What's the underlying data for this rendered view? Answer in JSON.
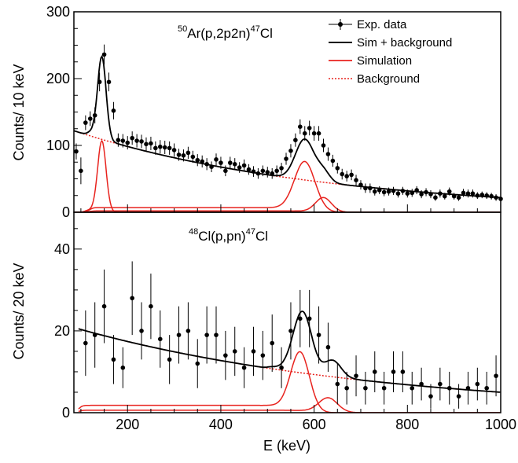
{
  "colors": {
    "data": "#000000",
    "total": "#000000",
    "sim": "#e8231e",
    "background": "#e8231e",
    "axis": "#000000"
  },
  "xlabel": "E (keV)",
  "xlim": [
    85,
    1000
  ],
  "xticks": [
    200,
    400,
    600,
    800,
    1000
  ],
  "legend": {
    "placement": "top-right",
    "entries": [
      {
        "label": "Exp. data",
        "style": "points"
      },
      {
        "label": "Sim + background",
        "style": "total"
      },
      {
        "label": "Simulation",
        "style": "sim"
      },
      {
        "label": "Background",
        "style": "background"
      }
    ]
  },
  "chart_data": [
    {
      "type": "scatter",
      "panel": "top",
      "title_parts": {
        "mass_a": "50",
        "reaction": "Ar(p,2p2n)",
        "mass_b": "47",
        "product": "Cl"
      },
      "ylabel": "Counts/ 10 keV",
      "ylim": [
        0,
        300
      ],
      "yticks": [
        0,
        100,
        200,
        300
      ],
      "x_range": [
        85,
        1000
      ],
      "series": [
        {
          "name": "Exp. data",
          "kind": "points",
          "points": [
            [
              90,
              91,
              12
            ],
            [
              100,
              62,
              20
            ],
            [
              110,
              134,
              11
            ],
            [
              120,
              140,
              11
            ],
            [
              130,
              145,
              12
            ],
            [
              140,
              195,
              14
            ],
            [
              150,
              236,
              15
            ],
            [
              160,
              195,
              14
            ],
            [
              170,
              152,
              13
            ],
            [
              180,
              108,
              10
            ],
            [
              190,
              107,
              10
            ],
            [
              200,
              104,
              10
            ],
            [
              210,
              111,
              10
            ],
            [
              220,
              107,
              10
            ],
            [
              230,
              106,
              10
            ],
            [
              240,
              102,
              10
            ],
            [
              250,
              103,
              10
            ],
            [
              260,
              96,
              10
            ],
            [
              270,
              98,
              10
            ],
            [
              280,
              97,
              10
            ],
            [
              290,
              96,
              10
            ],
            [
              300,
              93,
              10
            ],
            [
              310,
              86,
              9
            ],
            [
              320,
              85,
              9
            ],
            [
              330,
              89,
              9
            ],
            [
              340,
              83,
              9
            ],
            [
              350,
              78,
              9
            ],
            [
              360,
              76,
              9
            ],
            [
              370,
              72,
              9
            ],
            [
              380,
              68,
              8
            ],
            [
              390,
              79,
              9
            ],
            [
              400,
              74,
              9
            ],
            [
              410,
              62,
              8
            ],
            [
              420,
              74,
              9
            ],
            [
              430,
              72,
              9
            ],
            [
              440,
              67,
              8
            ],
            [
              450,
              70,
              9
            ],
            [
              460,
              64,
              8
            ],
            [
              470,
              61,
              8
            ],
            [
              480,
              58,
              8
            ],
            [
              490,
              62,
              8
            ],
            [
              500,
              60,
              8
            ],
            [
              510,
              58,
              8
            ],
            [
              520,
              62,
              8
            ],
            [
              530,
              66,
              8
            ],
            [
              540,
              80,
              9
            ],
            [
              550,
              92,
              10
            ],
            [
              560,
              108,
              10
            ],
            [
              570,
              128,
              11
            ],
            [
              580,
              118,
              11
            ],
            [
              590,
              126,
              11
            ],
            [
              600,
              118,
              11
            ],
            [
              610,
              118,
              11
            ],
            [
              620,
              100,
              10
            ],
            [
              630,
              87,
              10
            ],
            [
              640,
              77,
              9
            ],
            [
              650,
              66,
              8
            ],
            [
              660,
              57,
              8
            ],
            [
              670,
              54,
              8
            ],
            [
              680,
              56,
              8
            ],
            [
              690,
              48,
              8
            ],
            [
              700,
              41,
              7
            ],
            [
              710,
              36,
              7
            ],
            [
              720,
              36,
              7
            ],
            [
              730,
              31,
              6
            ],
            [
              740,
              33,
              6
            ],
            [
              750,
              30,
              6
            ],
            [
              760,
              31,
              6
            ],
            [
              770,
              32,
              6
            ],
            [
              780,
              28,
              6
            ],
            [
              790,
              32,
              6
            ],
            [
              800,
              28,
              6
            ],
            [
              810,
              29,
              6
            ],
            [
              820,
              33,
              6
            ],
            [
              830,
              27,
              6
            ],
            [
              840,
              30,
              6
            ],
            [
              850,
              27,
              6
            ],
            [
              860,
              22,
              5
            ],
            [
              870,
              28,
              6
            ],
            [
              880,
              24,
              5
            ],
            [
              890,
              31,
              6
            ],
            [
              900,
              24,
              5
            ],
            [
              910,
              22,
              5
            ],
            [
              920,
              29,
              6
            ],
            [
              930,
              28,
              6
            ],
            [
              940,
              28,
              6
            ],
            [
              950,
              25,
              5
            ],
            [
              960,
              26,
              5
            ],
            [
              970,
              25,
              5
            ],
            [
              980,
              24,
              5
            ],
            [
              990,
              22,
              5
            ],
            [
              1000,
              20,
              5
            ]
          ]
        },
        {
          "name": "Sim + background",
          "kind": "total",
          "peaks": [
            [
              145,
              120,
              9
            ],
            [
              580,
              61,
              20
            ],
            [
              620,
              15,
              14
            ]
          ],
          "shoulder": [
            115,
            145,
            8,
            10
          ]
        },
        {
          "name": "Simulation",
          "kind": "sim",
          "components": [
            {
              "peaks": [
                [
                  145,
                  105,
                  9
                ]
              ],
              "shoulder": [
                110,
                145,
                4,
                8
              ]
            },
            {
              "peaks": [
                [
                  580,
                  73,
                  22
                ]
              ],
              "shoulder": [
                118,
                575,
                7,
                18
              ]
            },
            {
              "peaks": [
                [
                  620,
                  21,
                  17
                ]
              ],
              "shoulder": [
                118,
                620,
                2,
                20
              ]
            }
          ]
        },
        {
          "name": "Background",
          "kind": "background",
          "curve": [
            [
              85,
              122
            ],
            [
              1000,
              22
            ]
          ]
        }
      ]
    },
    {
      "type": "scatter",
      "panel": "bottom",
      "title_parts": {
        "mass_a": "48",
        "reaction": "Cl(p,pn)",
        "mass_b": "47",
        "product": "Cl"
      },
      "ylabel": "Counts/ 20 keV",
      "ylim": [
        0,
        49
      ],
      "yticks": [
        0,
        20,
        40
      ],
      "x_range": [
        95,
        1000
      ],
      "series": [
        {
          "name": "Exp. data",
          "kind": "points",
          "points": [
            [
              110,
              17,
              8
            ],
            [
              130,
              19,
              8
            ],
            [
              150,
              26,
              9
            ],
            [
              170,
              13,
              6
            ],
            [
              190,
              11,
              5
            ],
            [
              210,
              28,
              9
            ],
            [
              230,
              20,
              7
            ],
            [
              250,
              26,
              8
            ],
            [
              270,
              18,
              7
            ],
            [
              290,
              13,
              6
            ],
            [
              310,
              19,
              7
            ],
            [
              330,
              20,
              7
            ],
            [
              350,
              12,
              6
            ],
            [
              370,
              19,
              7
            ],
            [
              390,
              19,
              7
            ],
            [
              410,
              14,
              6
            ],
            [
              430,
              15,
              6
            ],
            [
              450,
              11,
              5
            ],
            [
              470,
              15,
              6
            ],
            [
              490,
              14,
              6
            ],
            [
              510,
              17,
              7
            ],
            [
              530,
              11,
              5
            ],
            [
              550,
              20,
              7
            ],
            [
              570,
              23,
              7
            ],
            [
              590,
              23,
              7
            ],
            [
              610,
              19,
              7
            ],
            [
              630,
              16,
              6
            ],
            [
              650,
              7,
              5
            ],
            [
              670,
              6,
              4
            ],
            [
              690,
              9,
              5
            ],
            [
              710,
              6,
              4
            ],
            [
              730,
              10,
              5
            ],
            [
              750,
              6,
              4
            ],
            [
              770,
              10,
              5
            ],
            [
              790,
              10,
              5
            ],
            [
              810,
              6,
              4
            ],
            [
              830,
              7,
              4
            ],
            [
              850,
              4,
              3
            ],
            [
              870,
              7,
              4
            ],
            [
              890,
              6,
              4
            ],
            [
              910,
              4,
              3
            ],
            [
              930,
              6,
              4
            ],
            [
              950,
              7,
              4
            ],
            [
              970,
              6,
              4
            ],
            [
              990,
              9,
              5
            ]
          ]
        },
        {
          "name": "Sim + background",
          "kind": "total",
          "peaks": [
            [
              575,
              15,
              20
            ],
            [
              640,
              4,
              18
            ]
          ],
          "shoulder": [
            500,
            555,
            0.5,
            12
          ]
        },
        {
          "name": "Simulation",
          "kind": "sim",
          "components": [
            {
              "peaks": [
                [
                  570,
                  14.5,
                  20
                ]
              ],
              "shoulder": [
                95,
                555,
                1.8,
                12
              ]
            },
            {
              "peaks": [
                [
                  630,
                  3.5,
                  20
                ]
              ],
              "shoulder": [
                95,
                610,
                0.6,
                20
              ]
            }
          ]
        },
        {
          "name": "Background",
          "kind": "background",
          "curve": [
            [
              95,
              20.5
            ],
            [
              1000,
              5
            ]
          ]
        }
      ]
    }
  ]
}
